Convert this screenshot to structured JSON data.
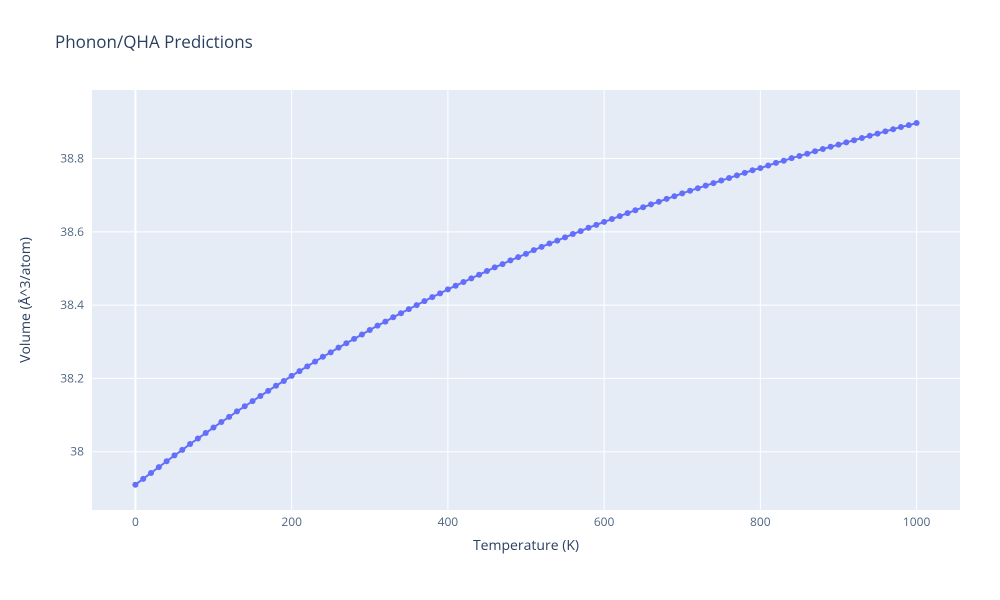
{
  "chart": {
    "type": "line",
    "title": "Phonon/QHA Predictions",
    "title_fontsize": 17,
    "title_color": "#2a3f5f",
    "background_color": "#ffffff",
    "plot_bg_color": "#e5ecf6",
    "grid_color": "#ffffff",
    "tick_color": "#506784",
    "axis_title_color": "#2a3f5f",
    "tick_fontsize": 12,
    "axis_title_fontsize": 14,
    "series_color": "#636efa",
    "line_width": 2,
    "marker_size": 6,
    "xlabel": "Temperature (K)",
    "ylabel": "Volume (Å^3/atom)",
    "xlim": [
      -55.56,
      1055.56
    ],
    "ylim": [
      37.841,
      38.987
    ],
    "xticks": [
      0,
      200,
      400,
      600,
      800,
      1000
    ],
    "yticks": [
      38,
      38.2,
      38.4,
      38.6,
      38.8
    ],
    "xtick_labels": [
      "0",
      "200",
      "400",
      "600",
      "800",
      "1000"
    ],
    "ytick_labels": [
      "38",
      "38.2",
      "38.4",
      "38.6",
      "38.8"
    ],
    "x": [
      0,
      10,
      20,
      30,
      40,
      50,
      60,
      70,
      80,
      90,
      100,
      110,
      120,
      130,
      140,
      150,
      160,
      170,
      180,
      190,
      200,
      210,
      220,
      230,
      240,
      250,
      260,
      270,
      280,
      290,
      300,
      310,
      320,
      330,
      340,
      350,
      360,
      370,
      380,
      390,
      400,
      410,
      420,
      430,
      440,
      450,
      460,
      470,
      480,
      490,
      500,
      510,
      520,
      530,
      540,
      550,
      560,
      570,
      580,
      590,
      600,
      610,
      620,
      630,
      640,
      650,
      660,
      670,
      680,
      690,
      700,
      710,
      720,
      730,
      740,
      750,
      760,
      770,
      780,
      790,
      800,
      810,
      820,
      830,
      840,
      850,
      860,
      870,
      880,
      890,
      900,
      910,
      920,
      930,
      940,
      950,
      960,
      970,
      980,
      990,
      1000
    ],
    "y": [
      37.91,
      37.926,
      37.942,
      37.958,
      37.974,
      37.99,
      38.005,
      38.021,
      38.036,
      38.051,
      38.066,
      38.081,
      38.095,
      38.11,
      38.124,
      38.138,
      38.152,
      38.166,
      38.18,
      38.193,
      38.207,
      38.22,
      38.233,
      38.246,
      38.259,
      38.271,
      38.284,
      38.296,
      38.308,
      38.32,
      38.332,
      38.344,
      38.355,
      38.367,
      38.378,
      38.389,
      38.4,
      38.411,
      38.422,
      38.432,
      38.443,
      38.453,
      38.463,
      38.473,
      38.483,
      38.493,
      38.503,
      38.512,
      38.522,
      38.531,
      38.54,
      38.55,
      38.559,
      38.568,
      38.576,
      38.585,
      38.594,
      38.602,
      38.611,
      38.619,
      38.627,
      38.635,
      38.643,
      38.651,
      38.659,
      38.667,
      38.675,
      38.682,
      38.69,
      38.697,
      38.705,
      38.712,
      38.719,
      38.726,
      38.733,
      38.74,
      38.747,
      38.754,
      38.761,
      38.768,
      38.774,
      38.781,
      38.788,
      38.794,
      38.801,
      38.807,
      38.813,
      38.82,
      38.826,
      38.832,
      38.838,
      38.844,
      38.85,
      38.856,
      38.862,
      38.868,
      38.874,
      38.88,
      38.886,
      38.891,
      38.897
    ]
  }
}
